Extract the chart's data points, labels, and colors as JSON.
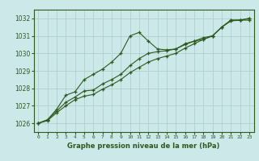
{
  "title": "Graphe pression niveau de la mer (hPa)",
  "bg_color": "#cce8e8",
  "grid_color": "#aacccc",
  "line_color": "#2d5a1b",
  "x_ticks": [
    0,
    1,
    2,
    3,
    4,
    5,
    6,
    7,
    8,
    9,
    10,
    11,
    12,
    13,
    14,
    15,
    16,
    17,
    18,
    19,
    20,
    21,
    22,
    23
  ],
  "ylim": [
    1025.5,
    1032.5
  ],
  "yticks": [
    1026,
    1027,
    1028,
    1029,
    1030,
    1031,
    1032
  ],
  "series1": [
    1026.0,
    1026.2,
    1026.8,
    1027.6,
    1027.8,
    1028.5,
    1028.8,
    1029.1,
    1029.5,
    1030.0,
    1031.0,
    1031.2,
    1030.7,
    1030.25,
    1030.2,
    1030.25,
    1030.55,
    1030.7,
    1030.8,
    1031.0,
    1031.5,
    1031.9,
    1031.9,
    1031.9
  ],
  "series2": [
    1026.0,
    1026.2,
    1026.7,
    1027.2,
    1027.5,
    1027.85,
    1027.9,
    1028.25,
    1028.5,
    1028.8,
    1029.3,
    1029.7,
    1030.0,
    1030.1,
    1030.15,
    1030.25,
    1030.5,
    1030.7,
    1030.9,
    1031.0,
    1031.5,
    1031.9,
    1031.9,
    1032.0
  ],
  "series3": [
    1026.0,
    1026.15,
    1026.6,
    1027.0,
    1027.35,
    1027.55,
    1027.65,
    1027.95,
    1028.2,
    1028.5,
    1028.9,
    1029.2,
    1029.5,
    1029.7,
    1029.85,
    1030.0,
    1030.3,
    1030.55,
    1030.8,
    1031.0,
    1031.5,
    1031.85,
    1031.9,
    1032.0
  ],
  "figsize": [
    3.2,
    2.0
  ],
  "dpi": 100
}
